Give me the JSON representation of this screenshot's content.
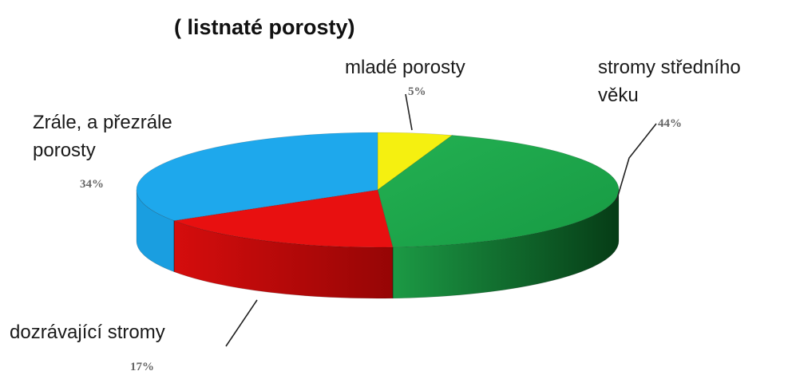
{
  "chart_data": {
    "type": "pie",
    "title": "( listnaté porosty)",
    "categories": [
      "mladé porosty",
      "stromy středního věku",
      "dozrávající stromy",
      "Zrále, a přezrále porosty"
    ],
    "values": [
      5,
      44,
      17,
      34
    ],
    "value_labels": [
      "5%",
      "44%",
      "17%",
      "34%"
    ],
    "label_lines": {
      "stromy_stredniho_veku": [
        "stromy středního",
        "věku"
      ],
      "zrale_prezrale": [
        "Zrále, a přezrále",
        "porosty"
      ]
    },
    "colors": [
      "#f5f010",
      "#1aa64a",
      "#e81010",
      "#1ea8ec"
    ],
    "side_colors": [
      "#b0aa00",
      "#0d5a22",
      "#a00606",
      "#128ccd"
    ],
    "legend": "none",
    "style": "3d-pie"
  }
}
